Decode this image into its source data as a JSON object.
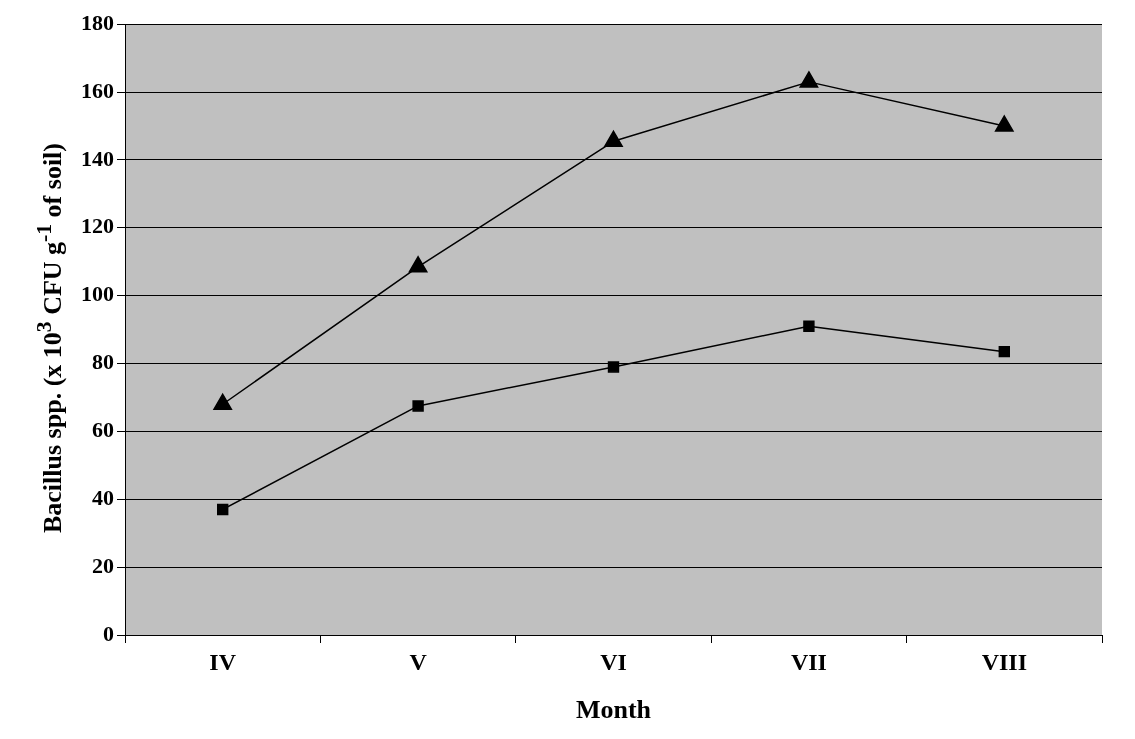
{
  "chart_data": {
    "type": "line",
    "xlabel": "Month",
    "ylabel": "Bacillus spp. (x 10$^{3}$ CFU g$^{-1}$ of soil)",
    "categories": [
      "IV",
      "V",
      "VI",
      "VII",
      "VIII"
    ],
    "series": [
      {
        "color": "#000000",
        "marker": "triangle",
        "values": [
          68,
          108.5,
          145.5,
          163,
          150
        ]
      },
      {
        "color": "#000000",
        "marker": "square",
        "values": [
          37,
          67.5,
          79,
          91,
          83.5
        ]
      }
    ],
    "ylim": [
      0,
      180
    ],
    "yticks": [
      0,
      20,
      40,
      60,
      80,
      100,
      120,
      140,
      160,
      180
    ],
    "grid": "y",
    "legend": false,
    "line_style": "solid"
  }
}
